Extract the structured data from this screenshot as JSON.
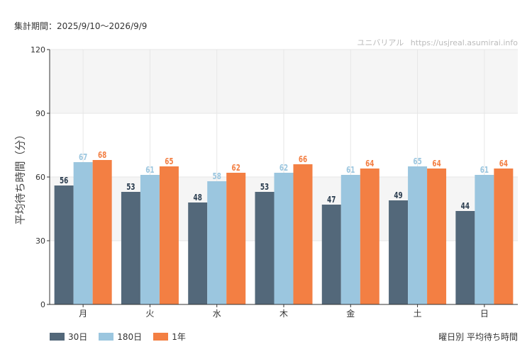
{
  "header": {
    "period": "集計期間：2025/9/10〜2026/9/9",
    "site_name": "ユニバリアル",
    "site_url": "https://usjreal.asumirai.info"
  },
  "caption": "曜日別 平均待ち時間",
  "colors": {
    "series_30": "#53687a",
    "series_180": "#9bc6df",
    "series_1y": "#f37f43",
    "band": "#f5f5f5",
    "grid": "#e6e6e6"
  },
  "chart_data": {
    "type": "bar",
    "title": "",
    "xlabel": "",
    "ylabel": "平均待ち時間（分）",
    "ylim": [
      0,
      120
    ],
    "yticks": [
      0,
      30,
      60,
      90,
      120
    ],
    "grid": true,
    "legend_position": "bottom-left",
    "categories": [
      "月",
      "火",
      "水",
      "木",
      "金",
      "土",
      "日"
    ],
    "series": [
      {
        "name": "30日",
        "values": [
          56,
          53,
          48,
          53,
          47,
          49,
          44
        ]
      },
      {
        "name": "180日",
        "values": [
          67,
          61,
          58,
          62,
          61,
          65,
          61
        ]
      },
      {
        "name": "1年",
        "values": [
          68,
          65,
          62,
          66,
          64,
          64,
          64
        ]
      }
    ]
  }
}
